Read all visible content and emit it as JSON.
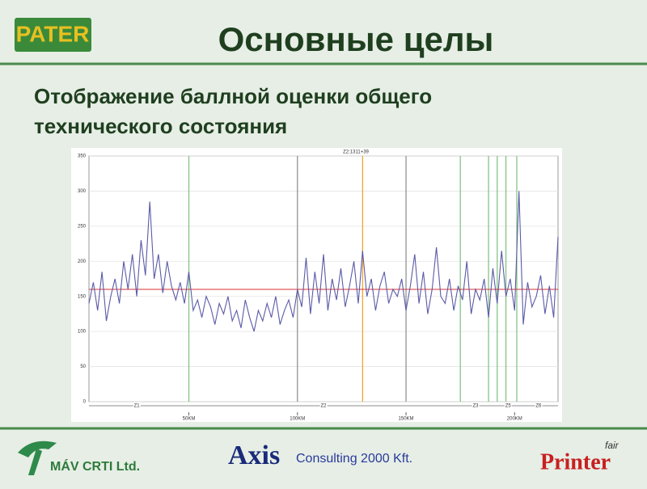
{
  "slide": {
    "title": "Основные целы",
    "subtitle_lines": [
      "Отображение баллной оценки общего",
      "технического состояния"
    ],
    "logo_top": "PATER",
    "footer_left": "MÁV CRTI Ltd.",
    "footer_center_logo": "Axis",
    "footer_center": "Consulting 2000 Kft.",
    "footer_right": "Printer",
    "footer_right_small": "fair"
  },
  "chart_data": {
    "type": "line",
    "title": "Z2:1311+39",
    "x": [
      4,
      6,
      8,
      10,
      12,
      14,
      16,
      18,
      20,
      22,
      24,
      26,
      28,
      30,
      32,
      34,
      36,
      38,
      40,
      42,
      44,
      46,
      48,
      50,
      52,
      54,
      56,
      58,
      60,
      62,
      64,
      66,
      68,
      70,
      72,
      74,
      76,
      78,
      80,
      82,
      84,
      86,
      88,
      90,
      92,
      94,
      96,
      98,
      100,
      102,
      104,
      106,
      108,
      110,
      112,
      114,
      116,
      118,
      120,
      122,
      124,
      126,
      128,
      130,
      132,
      134,
      136,
      138,
      140,
      142,
      144,
      146,
      148,
      150,
      152,
      154,
      156,
      158,
      160,
      162,
      164,
      166,
      168,
      170,
      172,
      174,
      176,
      178,
      180,
      182,
      184,
      186,
      188,
      190,
      192,
      194,
      196,
      198,
      200,
      202,
      204,
      206,
      208,
      210,
      212,
      214,
      216,
      218,
      220
    ],
    "series": [
      {
        "color": "#5a5aa8",
        "values": [
          140,
          170,
          130,
          185,
          115,
          150,
          175,
          140,
          200,
          160,
          210,
          150,
          230,
          180,
          285,
          175,
          210,
          155,
          200,
          165,
          145,
          170,
          140,
          185,
          130,
          145,
          120,
          150,
          135,
          110,
          140,
          125,
          150,
          115,
          130,
          105,
          145,
          120,
          100,
          130,
          115,
          140,
          120,
          150,
          110,
          130,
          145,
          120,
          160,
          135,
          205,
          125,
          185,
          140,
          210,
          130,
          175,
          145,
          190,
          135,
          165,
          200,
          140,
          215,
          150,
          175,
          130,
          165,
          185,
          140,
          160,
          150,
          175,
          130,
          165,
          210,
          140,
          185,
          125,
          160,
          220,
          150,
          140,
          175,
          130,
          165,
          145,
          200,
          125,
          160,
          145,
          175,
          120,
          190,
          140,
          215,
          150,
          175,
          130,
          300,
          110,
          170,
          135,
          150,
          180,
          125,
          165,
          120,
          235
        ]
      }
    ],
    "threshold": {
      "value": 160,
      "color": "#d83030"
    },
    "xlim": [
      4,
      220
    ],
    "ylim": [
      0,
      350
    ],
    "yticks": [
      0,
      50,
      100,
      150,
      200,
      250,
      300,
      350
    ],
    "xticks": [
      {
        "value": 50,
        "label": "50KM"
      },
      {
        "value": 100,
        "label": "100KM"
      },
      {
        "value": 150,
        "label": "150KM"
      },
      {
        "value": 200,
        "label": "200KM"
      }
    ],
    "grid": true,
    "vlines": [
      {
        "x": 50,
        "color": "#7cbf7c"
      },
      {
        "x": 100,
        "color": "#8a8a8a"
      },
      {
        "x": 130,
        "color": "#f0a020"
      },
      {
        "x": 150,
        "color": "#8a8a8a"
      },
      {
        "x": 175,
        "color": "#7cbf7c"
      },
      {
        "x": 188,
        "color": "#7cbf7c"
      },
      {
        "x": 192,
        "color": "#7cbf7c"
      },
      {
        "x": 196,
        "color": "#7cbf7c"
      },
      {
        "x": 201,
        "color": "#7cbf7c"
      }
    ],
    "zones": [
      {
        "x": 26,
        "label": "Z1"
      },
      {
        "x": 112,
        "label": "Z2"
      },
      {
        "x": 182,
        "label": "Z3"
      },
      {
        "x": 197,
        "label": "Z5"
      },
      {
        "x": 211,
        "label": "Z6"
      }
    ]
  }
}
